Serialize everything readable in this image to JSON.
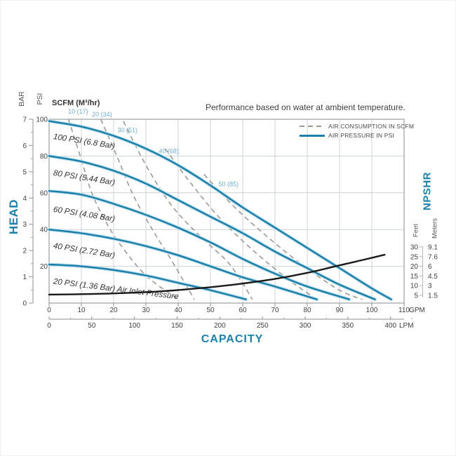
{
  "note": "Performance based on water at ambient temperature.",
  "legend": [
    {
      "label": "AIR CONSUMPTION IN SCFM",
      "style": "dashed-gray"
    },
    {
      "label": "AIR PRESSURE IN PSI",
      "style": "solid-teal"
    }
  ],
  "colors": {
    "accent_teal": "#1e7fa8",
    "curve_halo": "#c3e4f2",
    "scfm_label": "#6fb0cc",
    "dashed_gray": "#9b9b95",
    "npshr_black": "#1a1a1a",
    "grid": "#cdd2d6",
    "border": "#9aa0a5",
    "tick_text": "#3f3f3f"
  },
  "axis_titles": {
    "head": "HEAD",
    "capacity": "CAPACITY",
    "npshr": "NPSHR",
    "bar": "BAR",
    "psi": "PSI",
    "scfm_header": "SCFM (M³/hr)",
    "feet": "Feet",
    "meters": "Meters",
    "gpm_unit": "GPM",
    "lpm_unit": "LPM"
  },
  "chart_data": {
    "type": "line",
    "title": "Performance based on water at ambient temperature.",
    "xlabel": "CAPACITY",
    "ylabel": "HEAD",
    "grid": true,
    "x_axis": {
      "gpm_ticks": [
        0,
        10,
        20,
        30,
        40,
        50,
        60,
        70,
        80,
        90,
        100,
        110
      ],
      "lpm_ticks": [
        0,
        50,
        100,
        150,
        200,
        250,
        300,
        350,
        400
      ],
      "gpm_range": [
        0,
        110
      ]
    },
    "y_axis": {
      "bar_ticks": [
        7,
        6,
        5,
        4,
        3,
        2,
        1,
        0
      ],
      "psi_ticks": [
        100,
        80,
        60,
        40,
        20
      ],
      "psi_range": [
        0,
        100
      ]
    },
    "right_axis": {
      "label": "NPSHR",
      "feet_ticks": [
        30,
        25,
        20,
        15,
        10,
        5
      ],
      "meters_ticks": [
        "9.1",
        "7.6",
        "6",
        "4.5",
        "3",
        "1.5"
      ]
    },
    "series": [
      {
        "name": "100 PSI (6.8 Bar)",
        "kind": "air_pressure",
        "units": "gpm/psi",
        "style": "solid-teal",
        "label_at": [
          1.2,
          89.3
        ],
        "label_angle": 9,
        "points": [
          [
            0,
            99
          ],
          [
            10,
            96
          ],
          [
            20,
            91
          ],
          [
            30,
            84
          ],
          [
            40,
            75
          ],
          [
            50,
            64
          ],
          [
            60,
            52
          ],
          [
            70,
            41
          ],
          [
            80,
            30
          ],
          [
            90,
            19
          ],
          [
            100,
            8
          ],
          [
            106,
            2
          ]
        ]
      },
      {
        "name": "80 PSI (5.44 Bar)",
        "kind": "air_pressure",
        "units": "gpm/psi",
        "style": "solid-teal",
        "label_at": [
          1.2,
          69.5
        ],
        "label_angle": 9,
        "points": [
          [
            0,
            80
          ],
          [
            10,
            77
          ],
          [
            20,
            72
          ],
          [
            30,
            65
          ],
          [
            40,
            56
          ],
          [
            50,
            47
          ],
          [
            60,
            38
          ],
          [
            70,
            28
          ],
          [
            80,
            19
          ],
          [
            90,
            10
          ],
          [
            101,
            2
          ]
        ]
      },
      {
        "name": "60 PSI (4.08 Bar)",
        "kind": "air_pressure",
        "units": "gpm/psi",
        "style": "solid-teal",
        "label_at": [
          1.2,
          49.7
        ],
        "label_angle": 9,
        "points": [
          [
            0,
            61
          ],
          [
            10,
            59
          ],
          [
            20,
            54
          ],
          [
            30,
            48
          ],
          [
            40,
            41
          ],
          [
            50,
            33
          ],
          [
            60,
            24
          ],
          [
            70,
            16
          ],
          [
            80,
            9
          ],
          [
            93,
            2
          ]
        ]
      },
      {
        "name": "40 PSI (2.72 Bar)",
        "kind": "air_pressure",
        "units": "gpm/psi",
        "style": "solid-teal",
        "label_at": [
          1.2,
          29.9
        ],
        "label_angle": 9,
        "points": [
          [
            0,
            40
          ],
          [
            10,
            38
          ],
          [
            20,
            35
          ],
          [
            30,
            31
          ],
          [
            40,
            26
          ],
          [
            50,
            20
          ],
          [
            60,
            14
          ],
          [
            70,
            9
          ],
          [
            83,
            2
          ]
        ]
      },
      {
        "name": "20 PSI (1.36 Bar) Air Inlet Pressure",
        "kind": "air_pressure",
        "units": "gpm/psi",
        "style": "solid-teal",
        "label_at": [
          1.2,
          10.5
        ],
        "label_angle": 7,
        "points": [
          [
            0,
            21
          ],
          [
            10,
            20
          ],
          [
            20,
            18
          ],
          [
            30,
            15
          ],
          [
            40,
            11
          ],
          [
            50,
            7
          ],
          [
            61,
            2
          ]
        ]
      },
      {
        "name": "10 (17)",
        "kind": "air_consumption",
        "units": "gpm/psi",
        "style": "dashed-gray",
        "label_at": [
          5.9,
          103
        ],
        "label_angle": 0,
        "points": [
          [
            6,
            100
          ],
          [
            10,
            78
          ],
          [
            13,
            61
          ],
          [
            17,
            46
          ],
          [
            22,
            32
          ],
          [
            30,
            15
          ],
          [
            40,
            2
          ]
        ]
      },
      {
        "name": "20 (34)",
        "kind": "air_consumption",
        "units": "gpm/psi",
        "style": "dashed-gray",
        "label_at": [
          13.3,
          101.5
        ],
        "label_angle": 0,
        "points": [
          [
            16,
            100
          ],
          [
            21,
            80
          ],
          [
            26,
            59
          ],
          [
            32,
            40
          ],
          [
            38,
            23
          ],
          [
            45,
            2
          ]
        ]
      },
      {
        "name": "30 (51)",
        "kind": "air_consumption",
        "units": "gpm/psi",
        "style": "dashed-gray",
        "label_at": [
          21.2,
          93
        ],
        "label_angle": 0,
        "points": [
          [
            23,
            99
          ],
          [
            30,
            75
          ],
          [
            38,
            53
          ],
          [
            47,
            36
          ],
          [
            56,
            21
          ],
          [
            63,
            2
          ]
        ]
      },
      {
        "name": "40 (68)",
        "kind": "air_consumption",
        "units": "gpm/psi",
        "style": "dashed-gray",
        "label_at": [
          34,
          81.5
        ],
        "label_angle": 0,
        "points": [
          [
            36,
            84
          ],
          [
            44,
            65
          ],
          [
            53,
            46
          ],
          [
            63,
            29
          ],
          [
            74,
            13
          ],
          [
            83,
            2
          ]
        ]
      },
      {
        "name": "50 (85)",
        "kind": "air_consumption",
        "units": "gpm/psi",
        "style": "dashed-gray",
        "label_at": [
          52.5,
          63.5
        ],
        "label_angle": 0,
        "points": [
          [
            48,
            70
          ],
          [
            57,
            53
          ],
          [
            67,
            37
          ],
          [
            79,
            20
          ],
          [
            90,
            7
          ],
          [
            97,
            2
          ]
        ]
      },
      {
        "name": "NPSHR",
        "kind": "npshr",
        "units": "gpm/feet",
        "style": "solid-black",
        "points": [
          [
            0,
            5.4
          ],
          [
            10,
            5.6
          ],
          [
            22,
            6.1
          ],
          [
            34,
            7
          ],
          [
            46,
            8.6
          ],
          [
            58,
            10.7
          ],
          [
            70,
            13.5
          ],
          [
            80,
            16.6
          ],
          [
            90,
            20.5
          ],
          [
            97,
            23.2
          ],
          [
            104,
            26
          ]
        ]
      }
    ]
  }
}
